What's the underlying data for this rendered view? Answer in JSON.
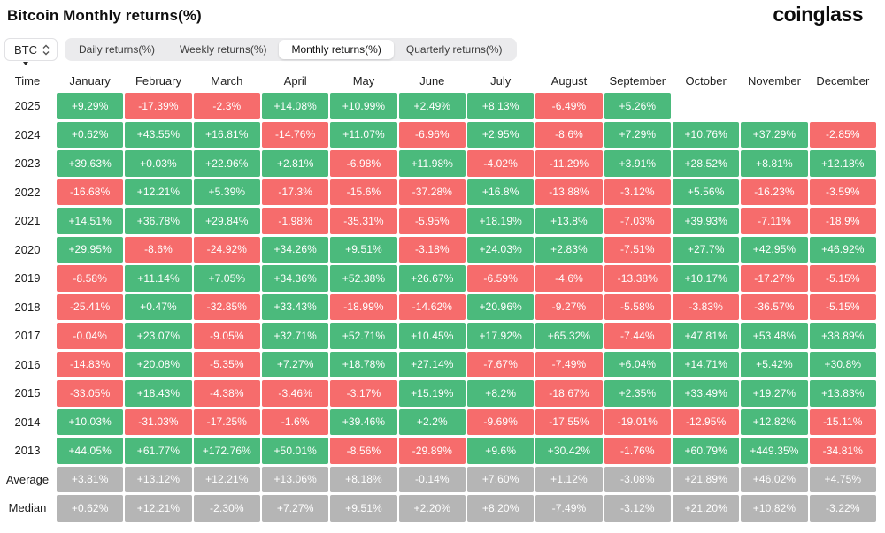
{
  "header": {
    "title": "Bitcoin Monthly returns(%)",
    "logo": "coinglass"
  },
  "controls": {
    "symbol": "BTC",
    "tabs": [
      {
        "label": "Daily returns(%)",
        "active": false
      },
      {
        "label": "Weekly returns(%)",
        "active": false
      },
      {
        "label": "Monthly returns(%)",
        "active": true
      },
      {
        "label": "Quarterly returns(%)",
        "active": false
      }
    ]
  },
  "colors": {
    "positive": "#4BBA7C",
    "negative": "#F66C6C",
    "neutral": "#B5B5B5",
    "tab_bar": "#EBEBED",
    "active_tab": "#FFFFFF"
  },
  "chart_data": {
    "type": "heatmap",
    "title": "Bitcoin Monthly returns(%)",
    "time_header": "Time",
    "columns": [
      "January",
      "February",
      "March",
      "April",
      "May",
      "June",
      "July",
      "August",
      "September",
      "October",
      "November",
      "December"
    ],
    "rows": [
      {
        "label": "2025",
        "summary": false,
        "values": [
          "+9.29%",
          "-17.39%",
          "-2.3%",
          "+14.08%",
          "+10.99%",
          "+2.49%",
          "+8.13%",
          "-6.49%",
          "+5.26%",
          "",
          "",
          ""
        ]
      },
      {
        "label": "2024",
        "summary": false,
        "values": [
          "+0.62%",
          "+43.55%",
          "+16.81%",
          "-14.76%",
          "+11.07%",
          "-6.96%",
          "+2.95%",
          "-8.6%",
          "+7.29%",
          "+10.76%",
          "+37.29%",
          "-2.85%"
        ]
      },
      {
        "label": "2023",
        "summary": false,
        "values": [
          "+39.63%",
          "+0.03%",
          "+22.96%",
          "+2.81%",
          "-6.98%",
          "+11.98%",
          "-4.02%",
          "-11.29%",
          "+3.91%",
          "+28.52%",
          "+8.81%",
          "+12.18%"
        ]
      },
      {
        "label": "2022",
        "summary": false,
        "values": [
          "-16.68%",
          "+12.21%",
          "+5.39%",
          "-17.3%",
          "-15.6%",
          "-37.28%",
          "+16.8%",
          "-13.88%",
          "-3.12%",
          "+5.56%",
          "-16.23%",
          "-3.59%"
        ]
      },
      {
        "label": "2021",
        "summary": false,
        "values": [
          "+14.51%",
          "+36.78%",
          "+29.84%",
          "-1.98%",
          "-35.31%",
          "-5.95%",
          "+18.19%",
          "+13.8%",
          "-7.03%",
          "+39.93%",
          "-7.11%",
          "-18.9%"
        ]
      },
      {
        "label": "2020",
        "summary": false,
        "values": [
          "+29.95%",
          "-8.6%",
          "-24.92%",
          "+34.26%",
          "+9.51%",
          "-3.18%",
          "+24.03%",
          "+2.83%",
          "-7.51%",
          "+27.7%",
          "+42.95%",
          "+46.92%"
        ]
      },
      {
        "label": "2019",
        "summary": false,
        "values": [
          "-8.58%",
          "+11.14%",
          "+7.05%",
          "+34.36%",
          "+52.38%",
          "+26.67%",
          "-6.59%",
          "-4.6%",
          "-13.38%",
          "+10.17%",
          "-17.27%",
          "-5.15%"
        ]
      },
      {
        "label": "2018",
        "summary": false,
        "values": [
          "-25.41%",
          "+0.47%",
          "-32.85%",
          "+33.43%",
          "-18.99%",
          "-14.62%",
          "+20.96%",
          "-9.27%",
          "-5.58%",
          "-3.83%",
          "-36.57%",
          "-5.15%"
        ]
      },
      {
        "label": "2017",
        "summary": false,
        "values": [
          "-0.04%",
          "+23.07%",
          "-9.05%",
          "+32.71%",
          "+52.71%",
          "+10.45%",
          "+17.92%",
          "+65.32%",
          "-7.44%",
          "+47.81%",
          "+53.48%",
          "+38.89%"
        ]
      },
      {
        "label": "2016",
        "summary": false,
        "values": [
          "-14.83%",
          "+20.08%",
          "-5.35%",
          "+7.27%",
          "+18.78%",
          "+27.14%",
          "-7.67%",
          "-7.49%",
          "+6.04%",
          "+14.71%",
          "+5.42%",
          "+30.8%"
        ]
      },
      {
        "label": "2015",
        "summary": false,
        "values": [
          "-33.05%",
          "+18.43%",
          "-4.38%",
          "-3.46%",
          "-3.17%",
          "+15.19%",
          "+8.2%",
          "-18.67%",
          "+2.35%",
          "+33.49%",
          "+19.27%",
          "+13.83%"
        ]
      },
      {
        "label": "2014",
        "summary": false,
        "values": [
          "+10.03%",
          "-31.03%",
          "-17.25%",
          "-1.6%",
          "+39.46%",
          "+2.2%",
          "-9.69%",
          "-17.55%",
          "-19.01%",
          "-12.95%",
          "+12.82%",
          "-15.11%"
        ]
      },
      {
        "label": "2013",
        "summary": false,
        "values": [
          "+44.05%",
          "+61.77%",
          "+172.76%",
          "+50.01%",
          "-8.56%",
          "-29.89%",
          "+9.6%",
          "+30.42%",
          "-1.76%",
          "+60.79%",
          "+449.35%",
          "-34.81%"
        ]
      },
      {
        "label": "Average",
        "summary": true,
        "values": [
          "+3.81%",
          "+13.12%",
          "+12.21%",
          "+13.06%",
          "+8.18%",
          "-0.14%",
          "+7.60%",
          "+1.12%",
          "-3.08%",
          "+21.89%",
          "+46.02%",
          "+4.75%"
        ]
      },
      {
        "label": "Median",
        "summary": true,
        "values": [
          "+0.62%",
          "+12.21%",
          "-2.30%",
          "+7.27%",
          "+9.51%",
          "+2.20%",
          "+8.20%",
          "-7.49%",
          "-3.12%",
          "+21.20%",
          "+10.82%",
          "-3.22%"
        ]
      }
    ]
  }
}
